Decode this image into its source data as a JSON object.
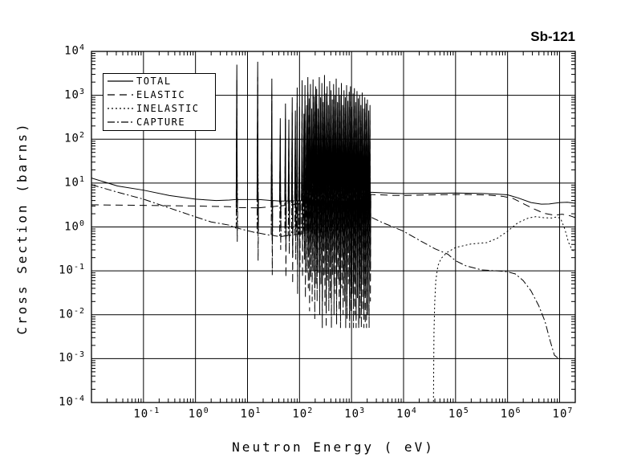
{
  "chart_data": {
    "type": "line",
    "title": "Sb-121",
    "xlabel": "Neutron Energy ( eV)",
    "ylabel": "Cross Section (barns)",
    "x_scale": "log",
    "y_scale": "log",
    "xlim": [
      0.01,
      20000000
    ],
    "ylim": [
      0.0001,
      10000
    ],
    "grid": true,
    "legend_position": "top-left",
    "x_tick_exponents": [
      -1,
      0,
      1,
      2,
      3,
      4,
      5,
      6,
      7
    ],
    "y_tick_exponents": [
      4,
      3,
      2,
      1,
      0,
      -1,
      -2,
      -3,
      -4
    ],
    "series": [
      {
        "name": "TOTAL",
        "style": "solid",
        "dash": "",
        "use_resonances": true,
        "peak_factor": 1,
        "dip_factor": 1,
        "dip_floor": 0.004,
        "smooth_low": [
          [
            -2,
            13
          ],
          [
            -1.5,
            8.6
          ],
          [
            -1,
            6.9
          ],
          [
            -0.5,
            5.2
          ],
          [
            0,
            4.3
          ],
          [
            0.4,
            4.0
          ],
          [
            0.65,
            4.1
          ]
        ],
        "base_points": [
          [
            0.65,
            4.1
          ],
          [
            1.0,
            4.4
          ],
          [
            1.6,
            3.9
          ],
          [
            2.3,
            4.0
          ],
          [
            3.0,
            3.8
          ],
          [
            3.35,
            4.8
          ]
        ],
        "smooth_high": [
          [
            3.36,
            6.2
          ],
          [
            3.6,
            6.0
          ],
          [
            4.0,
            5.75
          ],
          [
            4.5,
            5.85
          ],
          [
            5.0,
            5.95
          ],
          [
            5.5,
            5.8
          ],
          [
            5.8,
            5.6
          ],
          [
            6.0,
            5.4
          ],
          [
            6.2,
            4.6
          ],
          [
            6.45,
            3.6
          ],
          [
            6.65,
            3.3
          ],
          [
            6.8,
            3.35
          ],
          [
            7.0,
            3.6
          ],
          [
            7.15,
            3.65
          ],
          [
            7.32,
            3.45
          ]
        ]
      },
      {
        "name": "ELASTIC",
        "style": "dashed",
        "dash": "9,6",
        "use_resonances": true,
        "peak_factor": 0.45,
        "dip_factor": 0.2,
        "dip_floor": 0.005,
        "smooth_low": [
          [
            -2,
            3.2
          ],
          [
            -1,
            3.1
          ],
          [
            0,
            3.0
          ],
          [
            0.65,
            2.9
          ]
        ],
        "base_points": [
          [
            0.65,
            2.9
          ],
          [
            1.0,
            2.6
          ],
          [
            1.6,
            3.0
          ],
          [
            2.3,
            3.6
          ],
          [
            3.0,
            4.6
          ],
          [
            3.35,
            5.3
          ]
        ],
        "smooth_high": [
          [
            3.36,
            5.5
          ],
          [
            3.7,
            5.3
          ],
          [
            4.0,
            5.2
          ],
          [
            4.4,
            5.35
          ],
          [
            4.8,
            5.45
          ],
          [
            5.2,
            5.5
          ],
          [
            5.6,
            5.35
          ],
          [
            5.9,
            5.0
          ],
          [
            6.1,
            4.5
          ],
          [
            6.3,
            3.4
          ],
          [
            6.5,
            2.6
          ],
          [
            6.7,
            2.05
          ],
          [
            6.9,
            1.85
          ],
          [
            7.05,
            1.95
          ],
          [
            7.2,
            1.8
          ],
          [
            7.32,
            1.6
          ]
        ]
      },
      {
        "name": "INELASTIC",
        "style": "dotted",
        "dash": "2,3",
        "use_resonances": false,
        "points": [
          [
            4.575,
            0.000105
          ],
          [
            4.585,
            0.004
          ],
          [
            4.6,
            0.02
          ],
          [
            4.62,
            0.06
          ],
          [
            4.66,
            0.13
          ],
          [
            4.72,
            0.19
          ],
          [
            4.83,
            0.26
          ],
          [
            5.0,
            0.34
          ],
          [
            5.3,
            0.41
          ],
          [
            5.6,
            0.44
          ],
          [
            5.8,
            0.55
          ],
          [
            6.0,
            0.8
          ],
          [
            6.2,
            1.25
          ],
          [
            6.4,
            1.6
          ],
          [
            6.55,
            1.72
          ],
          [
            6.7,
            1.62
          ],
          [
            6.85,
            1.6
          ],
          [
            6.95,
            1.7
          ],
          [
            7.02,
            1.55
          ],
          [
            7.1,
            0.9
          ],
          [
            7.17,
            0.45
          ],
          [
            7.24,
            0.3
          ],
          [
            7.3,
            0.27
          ]
        ]
      },
      {
        "name": "CAPTURE",
        "style": "dash-dot",
        "dash": "9,3,2,3",
        "use_resonances": true,
        "peak_factor": 0.03,
        "dip_factor": null,
        "dip_floor": 0.001,
        "smooth_low": [
          [
            -2,
            9.2
          ],
          [
            -1.5,
            6.2
          ],
          [
            -1,
            4.3
          ],
          [
            -0.5,
            2.7
          ],
          [
            0,
            1.7
          ],
          [
            0.3,
            1.3
          ],
          [
            0.65,
            1.1
          ]
        ],
        "base_points": [
          [
            0.65,
            1.05
          ],
          [
            1.0,
            0.8
          ],
          [
            1.6,
            0.6
          ],
          [
            2.3,
            0.75
          ],
          [
            3.0,
            1.0
          ],
          [
            3.35,
            1.5
          ]
        ],
        "smooth_high": [
          [
            3.36,
            1.7
          ],
          [
            3.6,
            1.25
          ],
          [
            3.8,
            1.0
          ],
          [
            4.0,
            0.8
          ],
          [
            4.3,
            0.5
          ],
          [
            4.6,
            0.32
          ],
          [
            4.85,
            0.24
          ],
          [
            5.0,
            0.17
          ],
          [
            5.2,
            0.13
          ],
          [
            5.5,
            0.105
          ],
          [
            5.8,
            0.1
          ],
          [
            6.0,
            0.095
          ],
          [
            6.15,
            0.085
          ],
          [
            6.3,
            0.06
          ],
          [
            6.45,
            0.035
          ],
          [
            6.6,
            0.016
          ],
          [
            6.72,
            0.007
          ],
          [
            6.82,
            0.0025
          ],
          [
            6.9,
            0.0012
          ],
          [
            6.98,
            0.001
          ],
          [
            7.06,
            0.001
          ]
        ]
      }
    ],
    "resonance_region": {
      "description": "Resolved resonance forest; entries are [log10(E_eV), total peak barns, total dip barns]",
      "range_eV": [
        6.2,
        2300
      ],
      "resonances": [
        [
          0.795,
          5000,
          2.3
        ],
        [
          1.196,
          5800,
          0.85
        ],
        [
          1.468,
          2400,
          0.4
        ],
        [
          1.63,
          300,
          1.5
        ],
        [
          1.73,
          650,
          0.35
        ],
        [
          1.795,
          280,
          1.2
        ],
        [
          1.86,
          900,
          0.25
        ],
        [
          1.92,
          450,
          0.9
        ],
        [
          1.955,
          1500,
          0.15
        ],
        [
          2.0,
          550,
          0.6
        ],
        [
          2.05,
          2200,
          0.35
        ],
        [
          2.085,
          380,
          0.9
        ],
        [
          2.105,
          1700,
          0.12
        ],
        [
          2.135,
          600,
          0.45
        ],
        [
          2.16,
          2600,
          0.2
        ],
        [
          2.185,
          850,
          0.06
        ],
        [
          2.21,
          1800,
          0.35
        ],
        [
          2.235,
          500,
          0.1
        ],
        [
          2.26,
          2300,
          0.5
        ],
        [
          2.285,
          950,
          0.04
        ],
        [
          2.31,
          1600,
          0.25
        ],
        [
          2.33,
          1400,
          0.1
        ],
        [
          2.355,
          500,
          0.45
        ],
        [
          2.38,
          2600,
          0.05
        ],
        [
          2.405,
          900,
          0.25
        ],
        [
          2.43,
          1900,
          0.02
        ],
        [
          2.455,
          700,
          0.35
        ],
        [
          2.48,
          2900,
          0.08
        ],
        [
          2.505,
          1100,
          0.015
        ],
        [
          2.53,
          1600,
          0.3
        ],
        [
          2.555,
          600,
          0.06
        ],
        [
          2.58,
          2100,
          0.12
        ],
        [
          2.605,
          1300,
          0.025
        ],
        [
          2.63,
          800,
          0.4
        ],
        [
          2.655,
          1800,
          0.05
        ],
        [
          2.68,
          1000,
          0.15
        ],
        [
          2.705,
          2400,
          0.03
        ],
        [
          2.73,
          700,
          0.3
        ],
        [
          2.755,
          1500,
          0.06
        ],
        [
          2.78,
          1000,
          0.012
        ],
        [
          2.805,
          1900,
          0.2
        ],
        [
          2.83,
          600,
          0.05
        ],
        [
          2.855,
          1300,
          0.1
        ],
        [
          2.88,
          900,
          0.015
        ],
        [
          2.905,
          1700,
          0.04
        ],
        [
          2.93,
          750,
          0.25
        ],
        [
          2.955,
          1200,
          0.008
        ],
        [
          2.98,
          1600,
          0.06
        ],
        [
          3.005,
          550,
          0.15
        ],
        [
          3.03,
          1100,
          0.02
        ],
        [
          3.055,
          1450,
          0.05
        ],
        [
          3.08,
          700,
          0.008
        ],
        [
          3.105,
          1250,
          0.12
        ],
        [
          3.13,
          850,
          0.006
        ],
        [
          3.155,
          1000,
          0.04
        ],
        [
          3.18,
          600,
          0.015
        ],
        [
          3.205,
          1150,
          0.06
        ],
        [
          3.23,
          500,
          0.008
        ],
        [
          3.255,
          900,
          0.03
        ],
        [
          3.28,
          650,
          0.012
        ],
        [
          3.305,
          800,
          0.05
        ],
        [
          3.33,
          450,
          0.02
        ],
        [
          3.355,
          600,
          0.1
        ]
      ]
    }
  }
}
